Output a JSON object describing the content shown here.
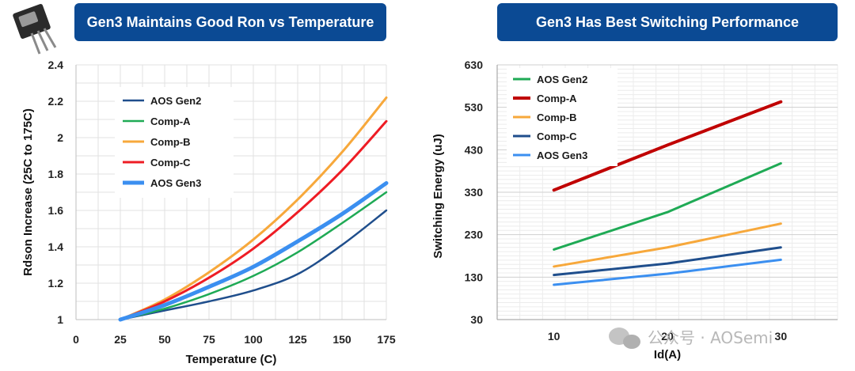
{
  "banners": {
    "left": "Gen3 Maintains Good Ron vs Temperature",
    "right": "Gen3 Has Best Switching Performance"
  },
  "watermark": {
    "text": "公众号 · AOSemi"
  },
  "chart_data": [
    {
      "type": "line",
      "title": "Gen3 Maintains Good Ron vs Temperature",
      "xlabel": "Temperature (C)",
      "ylabel": "Rdson Increase (25C to 175C)",
      "xlim": [
        0,
        175
      ],
      "ylim": [
        1,
        2.4
      ],
      "xticks": [
        0,
        25,
        50,
        75,
        100,
        125,
        150,
        175
      ],
      "yticks": [
        1,
        1.2,
        1.4,
        1.6,
        1.8,
        2,
        2.2,
        2.4
      ],
      "ytick_labels": [
        "1",
        "1.2",
        "1.4",
        "1.6",
        "1.8",
        "2",
        "2.2",
        "2.4"
      ],
      "grid": true,
      "legend": "top-left",
      "series": [
        {
          "name": "AOS Gen2",
          "color": "#1f4e8c",
          "width": 2.5,
          "x": [
            25,
            50,
            75,
            100,
            125,
            150,
            175
          ],
          "y": [
            1.0,
            1.05,
            1.1,
            1.16,
            1.25,
            1.41,
            1.6
          ]
        },
        {
          "name": "Comp-A",
          "color": "#1faa55",
          "width": 2.5,
          "x": [
            25,
            50,
            75,
            100,
            125,
            150,
            175
          ],
          "y": [
            1.0,
            1.06,
            1.14,
            1.24,
            1.37,
            1.53,
            1.7
          ]
        },
        {
          "name": "Comp-B",
          "color": "#f7a83b",
          "width": 3,
          "x": [
            25,
            50,
            75,
            100,
            125,
            150,
            175
          ],
          "y": [
            1.0,
            1.11,
            1.26,
            1.44,
            1.66,
            1.92,
            2.22
          ]
        },
        {
          "name": "Comp-C",
          "color": "#ee1c24",
          "width": 3,
          "x": [
            25,
            50,
            75,
            100,
            125,
            150,
            175
          ],
          "y": [
            1.0,
            1.1,
            1.23,
            1.39,
            1.59,
            1.82,
            2.09
          ]
        },
        {
          "name": "AOS Gen3",
          "color": "#3b8ff0",
          "width": 5,
          "x": [
            25,
            50,
            75,
            100,
            125,
            150,
            175
          ],
          "y": [
            1.0,
            1.08,
            1.18,
            1.29,
            1.43,
            1.58,
            1.75
          ]
        }
      ]
    },
    {
      "type": "line",
      "title": "Gen3 Has Best Switching Performance",
      "xlabel": "Id(A)",
      "ylabel": "Switching Energy (uJ)",
      "categories": [
        "10",
        "20",
        "30"
      ],
      "ylim": [
        30,
        630
      ],
      "yticks": [
        30,
        130,
        230,
        330,
        430,
        530,
        630
      ],
      "grid": true,
      "legend": "top-left",
      "series": [
        {
          "name": "AOS Gen2",
          "color": "#1faa55",
          "width": 3,
          "values": [
            195,
            283,
            398
          ]
        },
        {
          "name": "Comp-A",
          "color": "#c00000",
          "width": 4,
          "values": [
            335,
            441,
            543
          ]
        },
        {
          "name": "Comp-B",
          "color": "#f7a83b",
          "width": 3,
          "values": [
            155,
            200,
            256
          ]
        },
        {
          "name": "Comp-C",
          "color": "#1f4e8c",
          "width": 3,
          "values": [
            135,
            162,
            200
          ]
        },
        {
          "name": "AOS Gen3",
          "color": "#3b8ff0",
          "width": 3,
          "values": [
            112,
            138,
            171
          ]
        }
      ]
    }
  ]
}
